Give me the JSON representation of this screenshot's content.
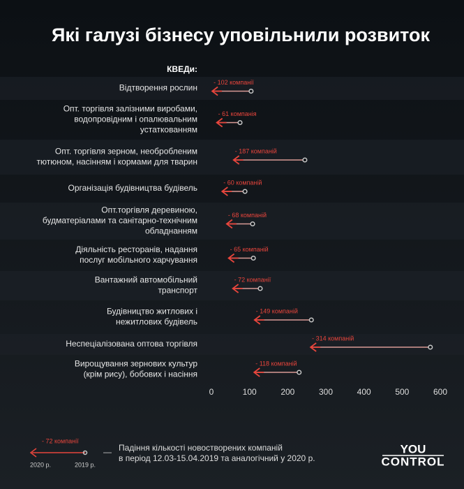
{
  "chart_data": {
    "type": "arrow",
    "title": "Які галузі бізнесу уповільнили розвиток",
    "category_header": "КВЕДи:",
    "categories": [
      [
        "Відтворення рослин"
      ],
      [
        "Опт. торгівля залізними виробами,",
        "водопровідним і опалювальним",
        "устаткованням"
      ],
      [
        "Опт. торгівля зерном, необробленим",
        "тютюном, насінням і кормами для тварин"
      ],
      [
        "Організація будівництва будівель"
      ],
      [
        "Опт.торгівля деревиною,",
        "будматеріалами та санітарно-технічним",
        "обладнанням"
      ],
      [
        "Діяльність ресторанів, надання",
        "послуг мобільного харчування"
      ],
      [
        "Вантажний автомобільний",
        "транспорт"
      ],
      [
        "Будівництво житлових і",
        "нежитлових будівель"
      ],
      [
        "Неспеціалізована оптова торгівля"
      ],
      [
        "Вирощування зернових культур",
        "(крім рису), бобових і насіння"
      ]
    ],
    "series": [
      {
        "name": "2019 р.",
        "color": "#c9c9c9",
        "values": [
          104,
          75,
          245,
          88,
          108,
          110,
          128,
          262,
          574,
          230
        ]
      },
      {
        "name": "2020 р.",
        "color": "#e8453c",
        "values": [
          2,
          14,
          58,
          28,
          40,
          45,
          56,
          113,
          260,
          112
        ]
      }
    ],
    "changes": [
      -102,
      -61,
      -187,
      -60,
      -68,
      -65,
      -72,
      -149,
      -314,
      -118
    ],
    "change_labels": [
      "- 102 компанії",
      "- 61 компанія",
      "- 187 компаній",
      "- 60 компаній",
      "- 68 компаній",
      "- 65 компаній",
      "- 72 компанії",
      "- 149 компаній",
      "- 314 компаній",
      "- 118 компаній"
    ],
    "xlim": [
      0,
      600
    ],
    "xticks": [
      0,
      100,
      200,
      300,
      400,
      500,
      600
    ],
    "legend": {
      "example_label": "- 72 компанії",
      "dash": "—",
      "description": [
        "Падіння кількості новостворених компаній",
        "в період 12.03-15.04.2019 та аналогічний у 2020 р."
      ]
    },
    "brand": [
      "YOU",
      "CONTROL"
    ]
  }
}
